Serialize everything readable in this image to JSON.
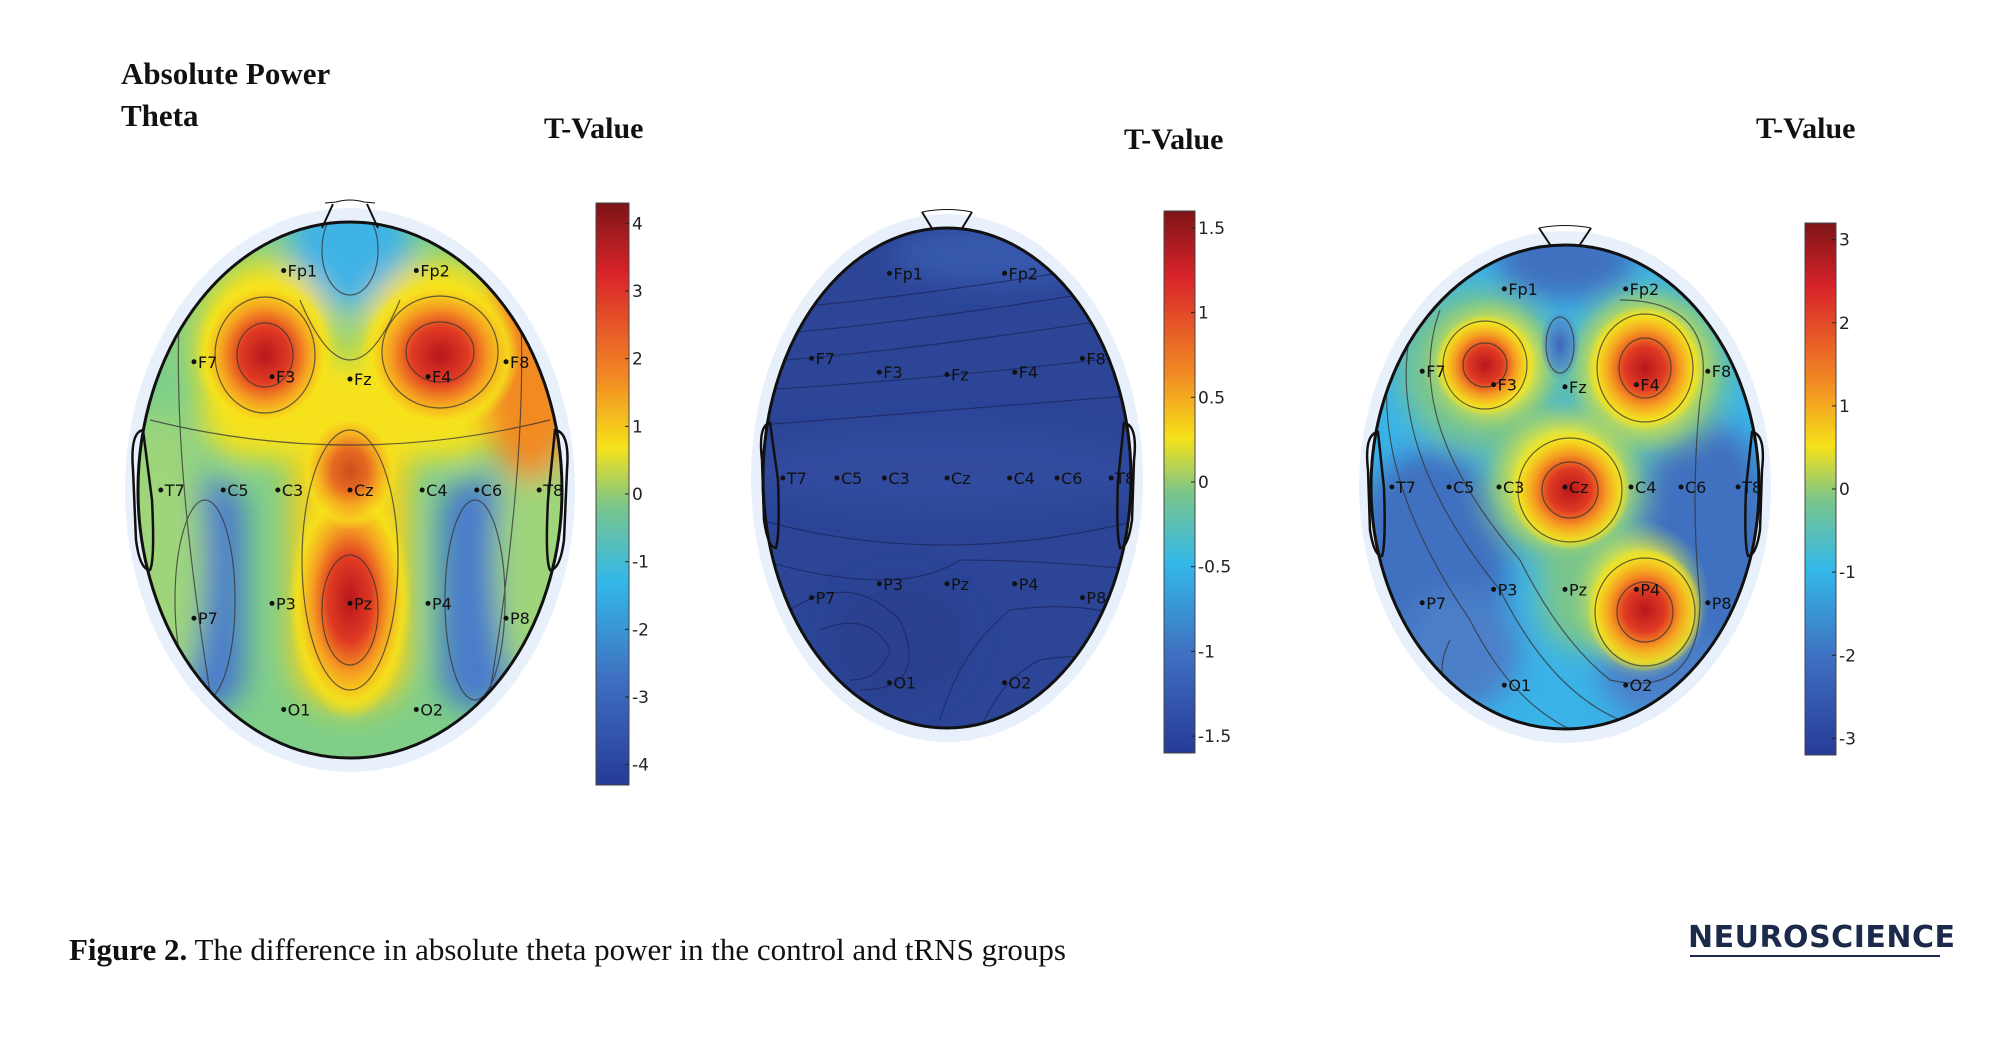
{
  "header": {
    "line1": "Absolute Power",
    "line2": "Theta"
  },
  "colorbar_title": "T-Value",
  "electrodes": [
    "Fp1",
    "Fp2",
    "F7",
    "F3",
    "Fz",
    "F4",
    "F8",
    "T7",
    "C5",
    "C3",
    "Cz",
    "C4",
    "C6",
    "T8",
    "P7",
    "P3",
    "Pz",
    "P4",
    "P8",
    "O1",
    "O2"
  ],
  "maps": [
    {
      "ticks": [
        "4",
        "3",
        "2",
        "1",
        "0",
        "-1",
        "-2",
        "-3",
        "-4"
      ],
      "min": -4.3,
      "max": 4.3
    },
    {
      "ticks": [
        "1.5",
        "1",
        "0.5",
        "0",
        "-0.5",
        "-1",
        "-1.5"
      ],
      "min": -1.6,
      "max": 1.6
    },
    {
      "ticks": [
        "3",
        "2",
        "1",
        "0",
        "-1",
        "-2",
        "-3"
      ],
      "min": -3.2,
      "max": 3.2
    }
  ],
  "caption": {
    "label": "Figure 2.",
    "text": "The difference in absolute theta power in the control and tRNS groups"
  },
  "logo": {
    "text": "NEUROSCIENCE"
  },
  "colors": {
    "deep_blue": "#263b95",
    "light_blue": "#33b8ea",
    "green": "#7ac58a",
    "yellow": "#f6e21a",
    "orange": "#f28a24",
    "red": "#d8232a",
    "dark_red": "#7d1416"
  }
}
